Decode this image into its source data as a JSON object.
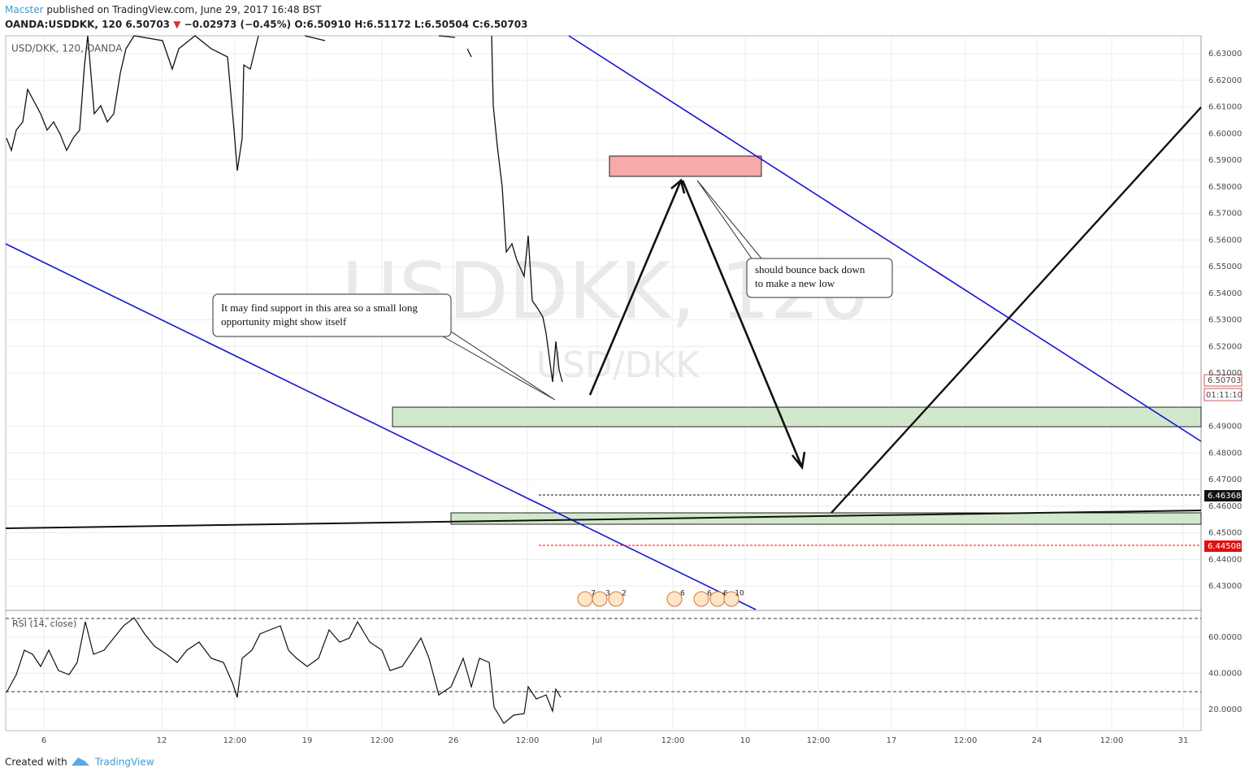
{
  "header": {
    "author": "Macster",
    "published": "published on TradingView.com, June 29, 2017 16:48 BST",
    "symbol": "OANDA:USDDKK, 120",
    "last": "6.50703",
    "change": "−0.02973 (−0.45%)",
    "open": "O:6.50910",
    "high": "H:6.51172",
    "low": "L:6.50504",
    "close": "C:6.50703"
  },
  "legend": "USD/DKK, 120, OANDA",
  "watermark": {
    "main": "USDDKK, 120",
    "sub": "USD/DKK"
  },
  "price_axis": [
    "6.63000",
    "6.62000",
    "6.61000",
    "6.60000",
    "6.59000",
    "6.58000",
    "6.57000",
    "6.56000",
    "6.55000",
    "6.54000",
    "6.53000",
    "6.52000",
    "6.51000",
    "6.49000",
    "6.48000",
    "6.47000",
    "6.46000",
    "6.45000",
    "6.44000",
    "6.43000"
  ],
  "price_badges": {
    "last": "6.50703",
    "countdown": "01:11:10",
    "black_line": "6.46368",
    "red_line": "6.44508"
  },
  "rsi": {
    "label": "RSI (14, close)",
    "axis": [
      "60.0000",
      "40.0000",
      "20.0000"
    ]
  },
  "time_axis": [
    "6",
    "12",
    "12:00",
    "19",
    "12:00",
    "26",
    "12:00",
    "Jul",
    "12:00",
    "10",
    "12:00",
    "17",
    "12:00",
    "24",
    "12:00",
    "31"
  ],
  "annotations": [
    {
      "lines": [
        "It may find support in this area so a small long",
        "opportunity might show itself"
      ]
    },
    {
      "lines": [
        "should bounce back down",
        " to make a new low"
      ]
    }
  ],
  "events": [
    "7",
    "3",
    "2",
    "6",
    "6",
    "6",
    "10"
  ],
  "footer": {
    "created": "Created with",
    "brand": "TradingView"
  }
}
